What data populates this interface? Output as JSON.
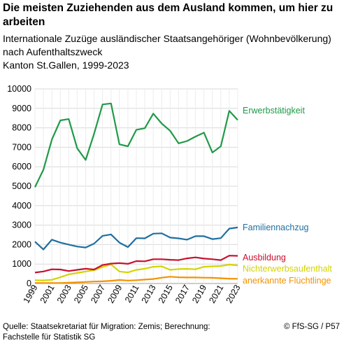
{
  "header": {
    "title": "Die meisten Zuziehenden aus dem Ausland kommen, um hier zu arbeiten",
    "subtitle_1": "Internationale Zuzüge ausländischer Staatsangehöriger (Wohnbevölkerung)",
    "subtitle_2": "nach Aufenthaltszweck",
    "subtitle_3": "Kanton St.Gallen, 1999-2023"
  },
  "footer": {
    "source_1": "Quelle: Staatsekretariat für Migration: Zemis; Berechnung:",
    "source_2": "Fachstelle für Statistik SG",
    "credit": "© FfS-SG / P57"
  },
  "chart_data": {
    "type": "line",
    "x": [
      1999,
      2000,
      2001,
      2002,
      2003,
      2004,
      2005,
      2006,
      2007,
      2008,
      2009,
      2010,
      2011,
      2012,
      2013,
      2014,
      2015,
      2016,
      2017,
      2018,
      2019,
      2020,
      2021,
      2022,
      2023
    ],
    "x_tick_labels": [
      "1999",
      "2001",
      "2003",
      "2005",
      "2007",
      "2009",
      "2011",
      "2013",
      "2015",
      "2017",
      "2019",
      "2021",
      "2023"
    ],
    "y_ticks": [
      0,
      1000,
      2000,
      3000,
      4000,
      5000,
      6000,
      7000,
      8000,
      9000,
      10000
    ],
    "ylim": [
      0,
      10000
    ],
    "grid": true,
    "series": [
      {
        "name": "Erwerbstätigkeit",
        "color": "#1f9a48",
        "values": [
          4950,
          5850,
          7400,
          8380,
          8450,
          6950,
          6350,
          7700,
          9200,
          9250,
          7150,
          7050,
          7900,
          7980,
          8730,
          8220,
          7850,
          7200,
          7320,
          7550,
          7750,
          6730,
          7050,
          8870,
          8400
        ]
      },
      {
        "name": "Familiennachzug",
        "color": "#1f6f9f",
        "values": [
          2150,
          1750,
          2250,
          2100,
          2000,
          1900,
          1850,
          2050,
          2450,
          2520,
          2100,
          1870,
          2330,
          2320,
          2560,
          2580,
          2360,
          2320,
          2250,
          2430,
          2430,
          2280,
          2330,
          2820,
          2880
        ]
      },
      {
        "name": "Ausbildung",
        "color": "#c8102e",
        "values": [
          560,
          620,
          730,
          720,
          640,
          700,
          760,
          720,
          950,
          1020,
          1050,
          1010,
          1150,
          1140,
          1250,
          1250,
          1220,
          1200,
          1290,
          1340,
          1280,
          1250,
          1200,
          1430,
          1420
        ]
      },
      {
        "name": "Nichterwerbsaufenthalt",
        "color": "#d4d400",
        "values": [
          170,
          160,
          190,
          320,
          470,
          540,
          620,
          680,
          850,
          980,
          620,
          570,
          700,
          760,
          860,
          880,
          700,
          740,
          750,
          730,
          860,
          880,
          900,
          970,
          930
        ]
      },
      {
        "name": "anerkannte Flüchtlinge",
        "color": "#f39200",
        "values": [
          30,
          20,
          20,
          20,
          40,
          60,
          80,
          100,
          110,
          140,
          180,
          150,
          170,
          200,
          230,
          300,
          350,
          320,
          310,
          310,
          300,
          290,
          270,
          250,
          240
        ]
      }
    ]
  }
}
